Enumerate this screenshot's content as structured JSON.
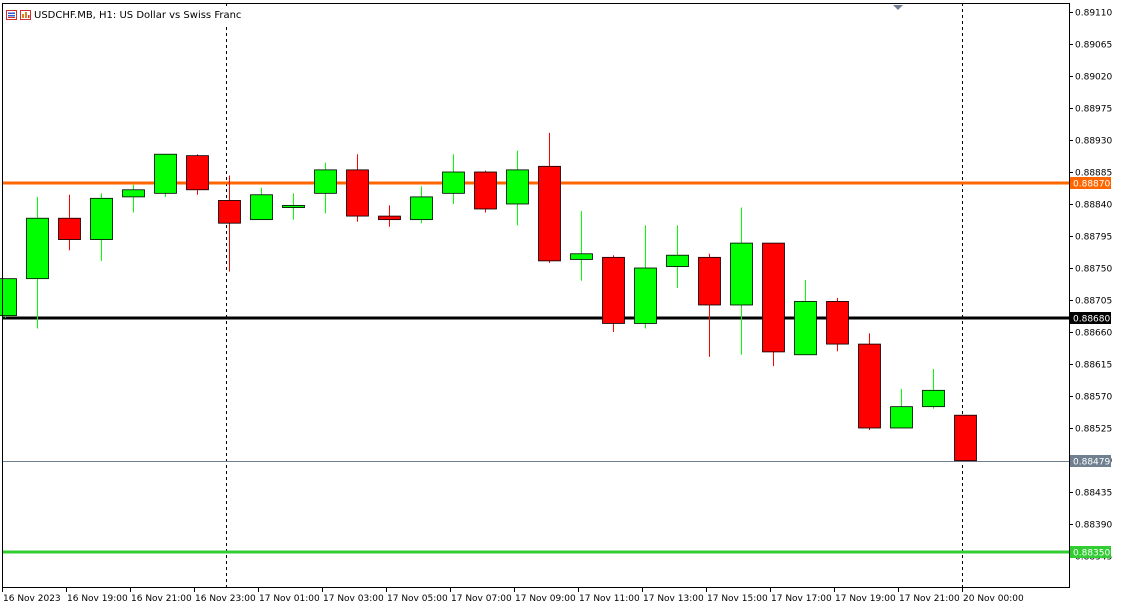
{
  "window": {
    "title": "USDCHF.MB, H1:  US Dollar vs Swiss Franc"
  },
  "icons": {
    "title_icon_1": "chart-icon-red-blue",
    "title_icon_2": "chart-icon-red-orange",
    "marker": "triangle-down-icon"
  },
  "colors": {
    "bull": "#00ff00",
    "bear": "#ff0000",
    "wick_outline": "#000000",
    "grid": "#000000",
    "background": "#ffffff"
  },
  "chart_data": {
    "type": "candlestick",
    "title": "USDCHF.MB, H1:  US Dollar vs Swiss Franc",
    "xlabel": "",
    "ylabel": "",
    "grid": false,
    "ylim": [
      0.88315,
      0.89125
    ],
    "y_ticks": [
      "0.89110",
      "0.89065",
      "0.89020",
      "0.88975",
      "0.88930",
      "0.88885",
      "0.88840",
      "0.88795",
      "0.88750",
      "0.88705",
      "0.88660",
      "0.88615",
      "0.88570",
      "0.88525",
      "0.88480",
      "0.88435",
      "0.88390",
      "0.88345"
    ],
    "x_ticks": [
      "16 Nov 2023",
      "16 Nov 19:00",
      "16 Nov 21:00",
      "16 Nov 23:00",
      "17 Nov 01:00",
      "17 Nov 03:00",
      "17 Nov 05:00",
      "17 Nov 07:00",
      "17 Nov 09:00",
      "17 Nov 11:00",
      "17 Nov 13:00",
      "17 Nov 15:00",
      "17 Nov 17:00",
      "17 Nov 19:00",
      "17 Nov 21:00",
      "20 Nov 00:00"
    ],
    "period_separators": [
      "17 Nov 00:00",
      "20 Nov 00:00"
    ],
    "candles": [
      {
        "o": 0.88683,
        "h": 0.88735,
        "l": 0.8868,
        "c": 0.88735
      },
      {
        "o": 0.88735,
        "h": 0.8885,
        "l": 0.88665,
        "c": 0.8882
      },
      {
        "o": 0.8882,
        "h": 0.88853,
        "l": 0.88775,
        "c": 0.8879
      },
      {
        "o": 0.8879,
        "h": 0.88855,
        "l": 0.8876,
        "c": 0.88848
      },
      {
        "o": 0.8885,
        "h": 0.88867,
        "l": 0.88828,
        "c": 0.8886
      },
      {
        "o": 0.88855,
        "h": 0.8891,
        "l": 0.8885,
        "c": 0.8891
      },
      {
        "o": 0.88908,
        "h": 0.8891,
        "l": 0.88853,
        "c": 0.8886
      },
      {
        "o": 0.88845,
        "h": 0.8888,
        "l": 0.88745,
        "c": 0.88813
      },
      {
        "o": 0.88818,
        "h": 0.88863,
        "l": 0.88818,
        "c": 0.88853
      },
      {
        "o": 0.88835,
        "h": 0.88855,
        "l": 0.88818,
        "c": 0.88838
      },
      {
        "o": 0.88855,
        "h": 0.88898,
        "l": 0.88827,
        "c": 0.88888
      },
      {
        "o": 0.88888,
        "h": 0.8891,
        "l": 0.88815,
        "c": 0.88823
      },
      {
        "o": 0.88823,
        "h": 0.88838,
        "l": 0.88808,
        "c": 0.88818
      },
      {
        "o": 0.88818,
        "h": 0.88865,
        "l": 0.88813,
        "c": 0.8885
      },
      {
        "o": 0.88855,
        "h": 0.8891,
        "l": 0.8884,
        "c": 0.88885
      },
      {
        "o": 0.88885,
        "h": 0.88887,
        "l": 0.88828,
        "c": 0.88833
      },
      {
        "o": 0.8884,
        "h": 0.88915,
        "l": 0.8881,
        "c": 0.88888
      },
      {
        "o": 0.88893,
        "h": 0.8894,
        "l": 0.88757,
        "c": 0.8876
      },
      {
        "o": 0.88762,
        "h": 0.8883,
        "l": 0.88732,
        "c": 0.8877
      },
      {
        "o": 0.88765,
        "h": 0.88768,
        "l": 0.8866,
        "c": 0.88672
      },
      {
        "o": 0.88672,
        "h": 0.8881,
        "l": 0.88665,
        "c": 0.8875
      },
      {
        "o": 0.88752,
        "h": 0.8881,
        "l": 0.88722,
        "c": 0.88768
      },
      {
        "o": 0.88765,
        "h": 0.8877,
        "l": 0.88625,
        "c": 0.88698
      },
      {
        "o": 0.88698,
        "h": 0.88835,
        "l": 0.88628,
        "c": 0.88785
      },
      {
        "o": 0.88785,
        "h": 0.88785,
        "l": 0.88612,
        "c": 0.88632
      },
      {
        "o": 0.88628,
        "h": 0.88733,
        "l": 0.88628,
        "c": 0.88703
      },
      {
        "o": 0.88703,
        "h": 0.88708,
        "l": 0.88633,
        "c": 0.88643
      },
      {
        "o": 0.88643,
        "h": 0.88658,
        "l": 0.88522,
        "c": 0.88525
      },
      {
        "o": 0.88525,
        "h": 0.8858,
        "l": 0.88525,
        "c": 0.88555
      },
      {
        "o": 0.88555,
        "h": 0.88608,
        "l": 0.88552,
        "c": 0.88578
      },
      {
        "o": 0.88543,
        "h": 0.88543,
        "l": 0.88479,
        "c": 0.88479
      }
    ],
    "levels": [
      {
        "value": 0.8887,
        "label": "0.88870",
        "color": "#ff6600",
        "width": 3
      },
      {
        "value": 0.8868,
        "label": "0.88680",
        "color": "#000000",
        "width": 3
      },
      {
        "value": 0.88479,
        "label": "0.88479",
        "color": "#708090",
        "width": 1
      },
      {
        "value": 0.8835,
        "label": "0.88350",
        "color": "#32cd32",
        "width": 3
      }
    ]
  }
}
